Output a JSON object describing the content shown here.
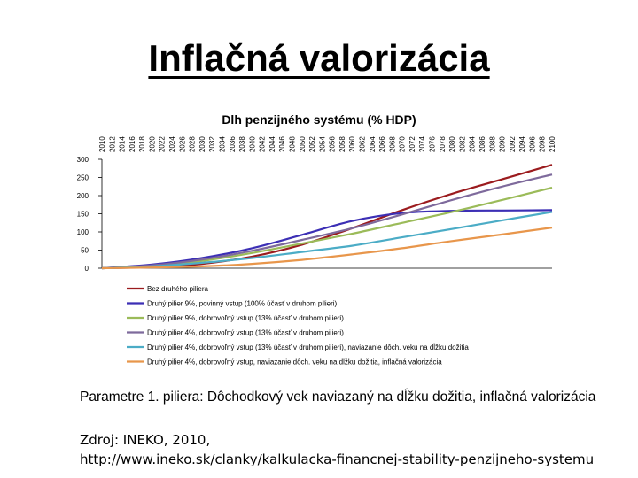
{
  "slide": {
    "title": "Inflačná valorizácia",
    "params": "Parametre 1. piliera: Dôchodkový vek naviazaný na dĺžku dožitia, inflačná valorizácia",
    "source_line1": "Zdroj: INEKO, 2010,",
    "source_line2": "http://www.ineko.sk/clanky/kalkulacka-financnej-stability-penzijneho-systemu"
  },
  "chart_data": {
    "type": "line",
    "title": "Dlh penzijného systému (% HDP)",
    "xlabel": "",
    "ylabel": "",
    "x_start": 2010,
    "x_end": 2100,
    "x_tick_labels": [
      "2010",
      "2012",
      "2014",
      "2016",
      "2018",
      "2020",
      "2022",
      "2024",
      "2026",
      "2028",
      "2030",
      "2032",
      "2034",
      "2036",
      "2038",
      "2040",
      "2042",
      "2044",
      "2046",
      "2048",
      "2050",
      "2052",
      "2054",
      "2056",
      "2058",
      "2060",
      "2062",
      "2064",
      "2066",
      "2068",
      "2070",
      "2072",
      "2074",
      "2076",
      "2078",
      "2080",
      "2082",
      "2084",
      "2086",
      "2088",
      "2090",
      "2092",
      "2094",
      "2096",
      "2098",
      "2100"
    ],
    "y_ticks": [
      "0",
      "50",
      "100",
      "150",
      "200",
      "250",
      "300"
    ],
    "ylim": [
      0,
      300
    ],
    "grid": false,
    "legend_position": "bottom",
    "series": [
      {
        "name": "Bez druhého piliera",
        "color": "#9b1b1e",
        "x": [
          2010,
          2020,
          2030,
          2040,
          2050,
          2060,
          2070,
          2080,
          2090,
          2100
        ],
        "y": [
          0,
          3,
          12,
          32,
          65,
          110,
          160,
          205,
          245,
          285
        ]
      },
      {
        "name": "Druhý pilier 9%, povinný vstup (100% účasť v druhom pilieri)",
        "color": "#3c2fb5",
        "x": [
          2010,
          2020,
          2030,
          2040,
          2050,
          2060,
          2070,
          2080,
          2090,
          2100
        ],
        "y": [
          0,
          10,
          28,
          55,
          92,
          130,
          152,
          158,
          159,
          160
        ]
      },
      {
        "name": "Druhý pilier 9%, dobrovoľný vstup (13% účasť v druhom pilieri)",
        "color": "#9bbb59",
        "x": [
          2010,
          2020,
          2030,
          2040,
          2050,
          2060,
          2070,
          2080,
          2090,
          2100
        ],
        "y": [
          0,
          6,
          20,
          42,
          68,
          95,
          125,
          155,
          188,
          222
        ]
      },
      {
        "name": "Druhý pilier 4%, dobrovoľný vstup (13% účasť v druhom pilieri)",
        "color": "#7e6a9c",
        "x": [
          2010,
          2020,
          2030,
          2040,
          2050,
          2060,
          2070,
          2080,
          2090,
          2100
        ],
        "y": [
          0,
          8,
          24,
          48,
          78,
          110,
          148,
          188,
          225,
          258
        ]
      },
      {
        "name": "Druhý pilier 4%, dobrovoľný vstup (13% účasť v druhom pilieri), naviazanie dôch. veku na dĺžku dožitia",
        "color": "#4bacc6",
        "x": [
          2010,
          2020,
          2030,
          2040,
          2050,
          2060,
          2070,
          2080,
          2090,
          2100
        ],
        "y": [
          0,
          5,
          15,
          28,
          45,
          62,
          85,
          108,
          132,
          155
        ]
      },
      {
        "name": "Druhý pilier 4%, dobrovoľný vstup, naviazanie dôch. veku na dĺžku dožitia, inflačná valorizácia",
        "color": "#e8964b",
        "x": [
          2010,
          2020,
          2030,
          2040,
          2050,
          2060,
          2070,
          2080,
          2090,
          2100
        ],
        "y": [
          0,
          2,
          5,
          12,
          23,
          38,
          55,
          75,
          93,
          112
        ]
      }
    ]
  }
}
